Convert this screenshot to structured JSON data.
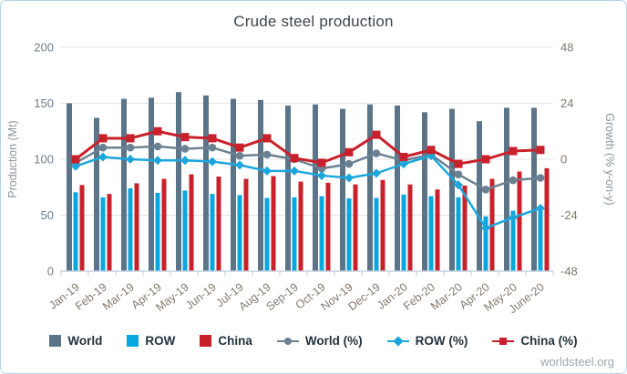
{
  "title": "Crude steel production",
  "source": "worldsteel.org",
  "colors": {
    "world_bar": "#5b7487",
    "row_bar": "#09a7e0",
    "china_bar": "#c9212b",
    "world_line": "#6b8192",
    "row_line": "#1ba7de",
    "china_line": "#c9212b",
    "grid": "#e3e3e3",
    "axis_line": "#c3d3e0",
    "tick_mark": "#b9cdde",
    "left_tick_text": "#6e7d8a",
    "right_tick_text": "#83796f",
    "x_tick_text": "#83796f",
    "axis_title_text": "#8d959b",
    "title_text": "#3b454d",
    "legend_text": "#24323d",
    "source_text": "#9ba6ae"
  },
  "chart_data": {
    "type": "bar",
    "subtype": "grouped bars with overlaid growth lines (dual axis)",
    "title": "Crude steel production",
    "categories": [
      "Jan-19",
      "Feb-19",
      "Mar-19",
      "Apr-19",
      "May-19",
      "Jun-19",
      "Jul-19",
      "Aug-19",
      "Sep-19",
      "Oct-19",
      "Nov-19",
      "Dec-19",
      "Jan-20",
      "Feb-20",
      "Mar-20",
      "Apr-20",
      "May-20",
      "June-20"
    ],
    "bar_series": [
      {
        "name": "World",
        "axis": "left",
        "unit": "Mt",
        "color": "#5b7487",
        "values": [
          150,
          137,
          154,
          155,
          160,
          157,
          154,
          153,
          148,
          149,
          145,
          149,
          148,
          142,
          145,
          134,
          146,
          146
        ]
      },
      {
        "name": "ROW",
        "axis": "left",
        "unit": "Mt",
        "color": "#09a7e0",
        "values": [
          70.5,
          66,
          74,
          70,
          72,
          69,
          68,
          65.5,
          66,
          67,
          65,
          65.5,
          68.5,
          67,
          66,
          49,
          54,
          58
        ]
      },
      {
        "name": "China",
        "axis": "left",
        "unit": "Mt",
        "color": "#c9212b",
        "values": [
          77,
          69,
          78.5,
          82.5,
          86.5,
          84.5,
          82.5,
          85,
          80,
          79,
          77.5,
          81.5,
          77.5,
          73,
          76.5,
          82.5,
          89,
          92
        ]
      }
    ],
    "line_series": [
      {
        "name": "World (%)",
        "axis": "right",
        "unit": "%",
        "color": "#6b8192",
        "marker": "circle",
        "values": [
          -1.5,
          5,
          5,
          5.5,
          4.5,
          5,
          1.5,
          2,
          0,
          -4,
          -2,
          2.5,
          -0.5,
          2,
          -6.5,
          -13,
          -9,
          -8
        ]
      },
      {
        "name": "ROW (%)",
        "axis": "right",
        "unit": "%",
        "color": "#1ba7de",
        "marker": "diamond",
        "values": [
          -3,
          1,
          0,
          -0.5,
          -0.5,
          -1,
          -2.5,
          -5,
          -5,
          -7,
          -8,
          -6,
          -2,
          1.5,
          -11,
          -29.5,
          -25,
          -21
        ]
      },
      {
        "name": "China (%)",
        "axis": "right",
        "unit": "%",
        "color": "#c9212b",
        "marker": "square",
        "values": [
          0,
          9,
          9,
          12,
          9.5,
          9,
          5,
          9,
          0.5,
          -1.5,
          3,
          10.5,
          1,
          4,
          -2,
          0,
          3.5,
          4
        ]
      }
    ],
    "left_axis": {
      "label": "Production (Mt)",
      "ticks": [
        0,
        50,
        100,
        150,
        200
      ],
      "range": [
        0,
        200
      ]
    },
    "right_axis": {
      "label": "Growth (% y-on-y)",
      "ticks": [
        -48,
        -24,
        0,
        24,
        48
      ],
      "range": [
        -48,
        48
      ]
    },
    "grid": true,
    "legend_position": "bottom",
    "annotations": [
      "worldsteel.org"
    ]
  }
}
